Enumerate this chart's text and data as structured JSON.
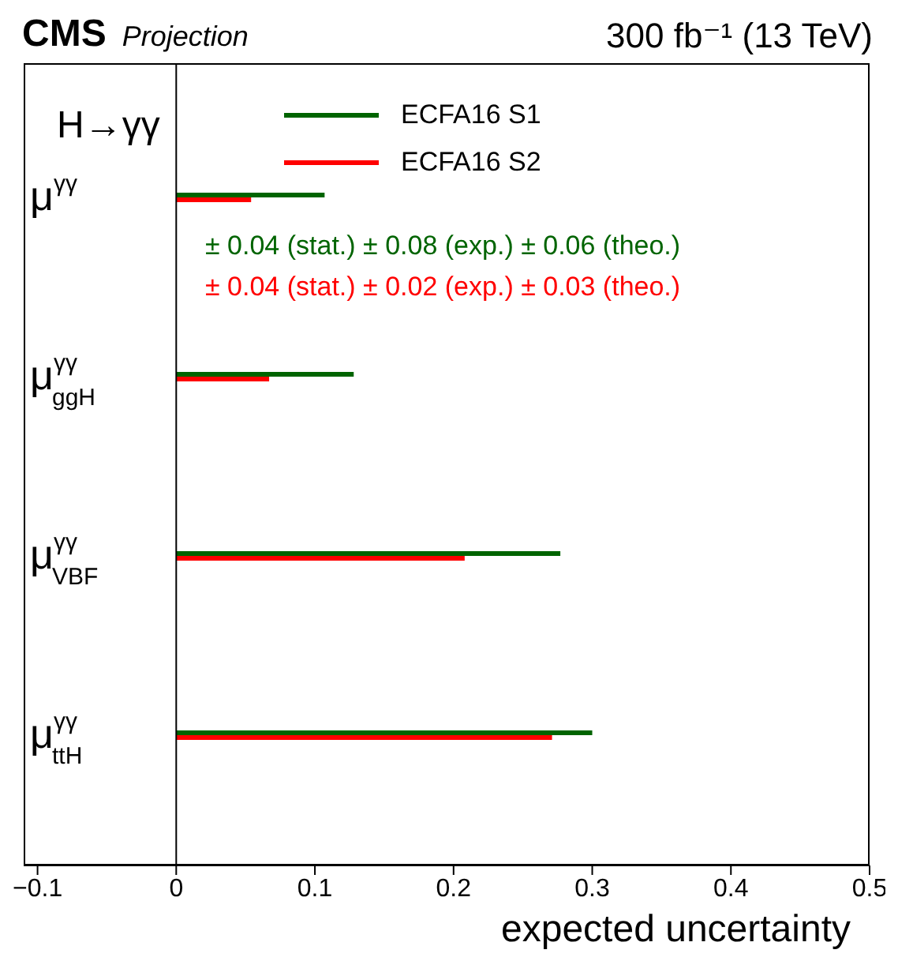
{
  "chart_data": {
    "type": "bar",
    "orientation": "horizontal",
    "title": "CMS",
    "subtitle": "Projection",
    "annotations": [
      "300 fb⁻¹ (13 TeV)",
      "H→γγ",
      "± 0.04 (stat.) ± 0.08 (exp.) ± 0.06 (theo.)",
      "± 0.04 (stat.) ± 0.02 (exp.) ± 0.03 (theo.)"
    ],
    "xlabel": "expected uncertainty",
    "categories": [
      "μ$^{γγ}$",
      "μ$^{γγ}$$_{ggH}$",
      "μ$^{γγ}$$_{VBF}$",
      "μ$^{γγ}$$_{ttH}$"
    ],
    "series": [
      {
        "name": "ECFA16 S1",
        "color": "#006400",
        "values": [
          0.107,
          0.128,
          0.277,
          0.3
        ]
      },
      {
        "name": "ECFA16 S2",
        "color": "#ff0000",
        "values": [
          0.054,
          0.067,
          0.208,
          0.271
        ]
      }
    ],
    "xlim": [
      -0.11,
      0.5
    ],
    "xticks": [
      -0.1,
      0,
      0.1,
      0.2,
      0.3,
      0.4,
      0.5
    ],
    "ref_lines": [
      {
        "axis": "x",
        "value": 0,
        "color": "#000000"
      }
    ],
    "legend": "top"
  }
}
